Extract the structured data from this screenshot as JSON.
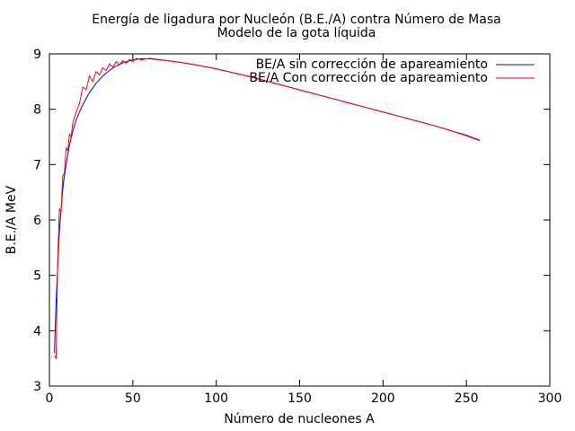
{
  "chart_data": {
    "type": "line",
    "title": "Energía de ligadura por Nucleón (B.E./A) contra Número de Masa",
    "subtitle": "Modelo de la gota líquida",
    "xlabel": "Número de nucleones A",
    "ylabel": "B.E./A MeV",
    "xlim": [
      0,
      300
    ],
    "ylim": [
      3,
      9
    ],
    "xticks": [
      0,
      50,
      100,
      150,
      200,
      250,
      300
    ],
    "yticks": [
      3,
      4,
      5,
      6,
      7,
      8,
      9
    ],
    "grid": false,
    "legend_position": "top-right",
    "series": [
      {
        "name": "BE/A sin corrección de apareamiento",
        "color": "#0000ff",
        "x": [
          3,
          4,
          5,
          6,
          7,
          8,
          9,
          10,
          12,
          14,
          16,
          18,
          20,
          24,
          28,
          32,
          36,
          40,
          45,
          50,
          55,
          60,
          70,
          80,
          90,
          100,
          110,
          120,
          130,
          140,
          150,
          160,
          170,
          180,
          190,
          200,
          210,
          220,
          230,
          240,
          250,
          258
        ],
        "y": [
          3.6,
          4.5,
          5.2,
          5.8,
          6.2,
          6.55,
          6.8,
          7.0,
          7.35,
          7.6,
          7.8,
          7.95,
          8.08,
          8.3,
          8.47,
          8.6,
          8.7,
          8.78,
          8.85,
          8.89,
          8.91,
          8.91,
          8.88,
          8.84,
          8.79,
          8.73,
          8.66,
          8.59,
          8.51,
          8.43,
          8.35,
          8.27,
          8.19,
          8.11,
          8.03,
          7.95,
          7.87,
          7.79,
          7.71,
          7.62,
          7.53,
          7.44
        ]
      },
      {
        "name": "BE/A Con corrección de apareamiento",
        "color": "#ff0000",
        "x": [
          3,
          4,
          5,
          6,
          7,
          8,
          9,
          10,
          11,
          12,
          13,
          14,
          16,
          18,
          20,
          22,
          24,
          26,
          28,
          30,
          32,
          34,
          36,
          38,
          40,
          42,
          44,
          46,
          48,
          50,
          52,
          55,
          60,
          70,
          80,
          90,
          100,
          110,
          120,
          130,
          140,
          150,
          160,
          170,
          180,
          190,
          200,
          210,
          220,
          230,
          240,
          250,
          258
        ],
        "y": [
          3.55,
          3.5,
          5.3,
          6.2,
          6.15,
          6.8,
          6.85,
          7.3,
          7.25,
          7.55,
          7.5,
          7.75,
          7.95,
          8.1,
          8.4,
          8.35,
          8.6,
          8.5,
          8.68,
          8.62,
          8.75,
          8.7,
          8.82,
          8.76,
          8.86,
          8.8,
          8.88,
          8.83,
          8.9,
          8.86,
          8.92,
          8.89,
          8.92,
          8.88,
          8.84,
          8.79,
          8.73,
          8.66,
          8.59,
          8.51,
          8.43,
          8.35,
          8.27,
          8.19,
          8.11,
          8.03,
          7.95,
          7.87,
          7.79,
          7.71,
          7.62,
          7.52,
          7.43
        ]
      }
    ]
  }
}
